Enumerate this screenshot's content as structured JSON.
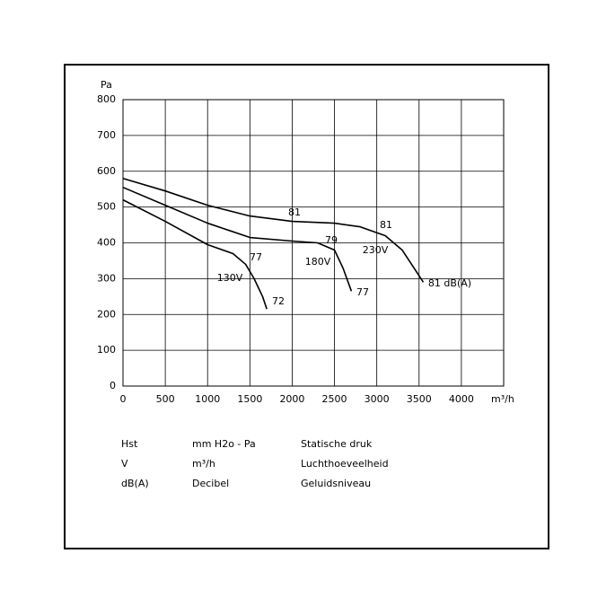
{
  "chart_data": {
    "type": "line",
    "ylabel": "Pa",
    "xlabel": "m³/h",
    "xlim": [
      0,
      4500
    ],
    "ylim": [
      0,
      800
    ],
    "xticks": [
      0,
      500,
      1000,
      1500,
      2000,
      2500,
      3000,
      3500,
      4000
    ],
    "yticks": [
      0,
      100,
      200,
      300,
      400,
      500,
      600,
      700,
      800
    ],
    "grid": true,
    "series": [
      {
        "name": "230V",
        "color": "#000000",
        "x": [
          0,
          500,
          1000,
          1500,
          2000,
          2500,
          2800,
          3100,
          3300,
          3550
        ],
        "values": [
          580,
          545,
          505,
          475,
          460,
          455,
          445,
          420,
          380,
          290
        ]
      },
      {
        "name": "180V",
        "color": "#000000",
        "x": [
          0,
          500,
          1000,
          1500,
          2000,
          2300,
          2500,
          2600,
          2700
        ],
        "values": [
          555,
          505,
          455,
          415,
          405,
          400,
          380,
          330,
          265
        ]
      },
      {
        "name": "130V",
        "color": "#000000",
        "x": [
          0,
          500,
          1000,
          1300,
          1450,
          1550,
          1650,
          1700
        ],
        "values": [
          520,
          460,
          395,
          370,
          340,
          300,
          250,
          215
        ]
      }
    ],
    "annotations": [
      "81",
      "81",
      "81 dB(A)",
      "79",
      "77",
      "77",
      "72"
    ],
    "legend_table": [
      [
        "Hst",
        "mm H2o - Pa",
        "Statische druk"
      ],
      [
        "V",
        "m³/h",
        "Luchthoeveelheid"
      ],
      [
        "dB(A)",
        "Decibel",
        "Geluidsniveau"
      ]
    ]
  }
}
